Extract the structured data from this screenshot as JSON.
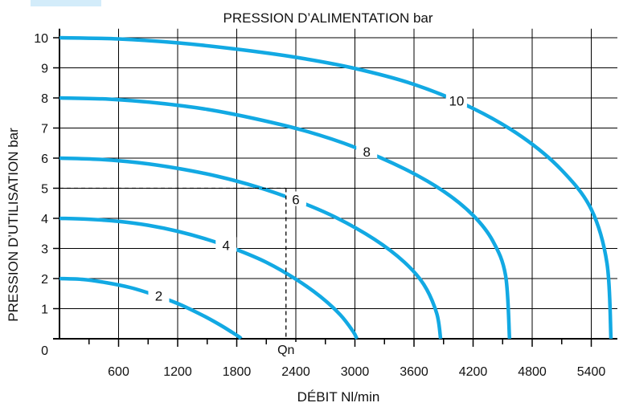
{
  "chart_data": {
    "type": "line",
    "title": "PRESSION D’ALIMENTATION bar",
    "xlabel": "DÉBIT Nl/min",
    "ylabel": "PRESSION D’UTILISATION bar",
    "xlim": [
      0,
      5800
    ],
    "ylim": [
      0,
      10.3
    ],
    "x_ticks": [
      600,
      1200,
      1800,
      2400,
      3000,
      3600,
      4200,
      4800,
      5400
    ],
    "y_ticks": [
      0,
      1,
      2,
      3,
      4,
      5,
      6,
      7,
      8,
      9,
      10
    ],
    "grid": true,
    "series_color": "#12a9e3",
    "series": [
      {
        "name": "2",
        "x": [
          0,
          240,
          480,
          720,
          960,
          1200,
          1440,
          1620,
          1750,
          1830,
          1840
        ],
        "values": [
          2,
          1.97,
          1.86,
          1.7,
          1.46,
          1.17,
          0.8,
          0.48,
          0.22,
          0.05,
          0
        ]
      },
      {
        "name": "4",
        "x": [
          0,
          300,
          600,
          900,
          1200,
          1500,
          1800,
          2100,
          2400,
          2650,
          2850,
          2980,
          3020
        ],
        "values": [
          4,
          3.97,
          3.9,
          3.77,
          3.57,
          3.3,
          2.96,
          2.54,
          1.98,
          1.4,
          0.8,
          0.25,
          0
        ]
      },
      {
        "name": "6",
        "x": [
          0,
          400,
          800,
          1200,
          1600,
          2000,
          2400,
          2800,
          3200,
          3500,
          3700,
          3830,
          3870
        ],
        "values": [
          6,
          5.96,
          5.85,
          5.66,
          5.4,
          5.05,
          4.6,
          4.04,
          3.3,
          2.55,
          1.8,
          0.85,
          0
        ]
      },
      {
        "name": "8",
        "x": [
          0,
          500,
          1000,
          1500,
          2000,
          2500,
          3000,
          3500,
          3900,
          4200,
          4400,
          4530,
          4570
        ],
        "values": [
          8,
          7.96,
          7.83,
          7.62,
          7.3,
          6.9,
          6.36,
          5.65,
          4.9,
          4.1,
          3.25,
          2.1,
          0
        ]
      },
      {
        "name": "10",
        "x": [
          0,
          600,
          1200,
          1800,
          2400,
          3000,
          3600,
          4200,
          4700,
          5100,
          5400,
          5560,
          5600
        ],
        "values": [
          10,
          9.96,
          9.83,
          9.62,
          9.35,
          8.98,
          8.45,
          7.65,
          6.7,
          5.6,
          4.3,
          2.5,
          0
        ]
      }
    ],
    "annotations": [
      {
        "text": "Qn",
        "x": 2300,
        "y": 5
      }
    ]
  }
}
